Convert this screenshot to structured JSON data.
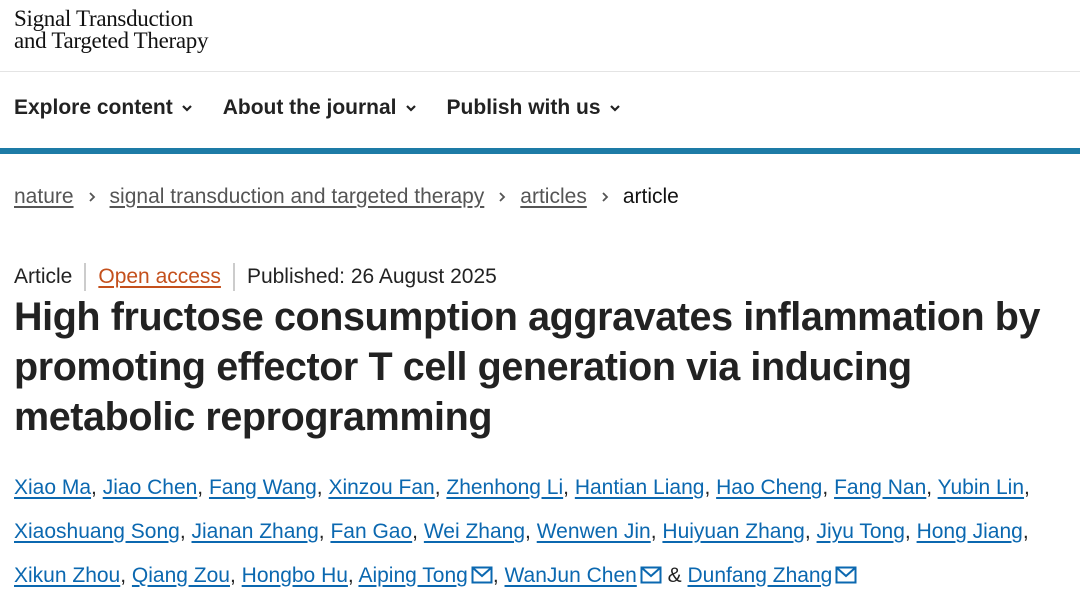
{
  "header": {
    "journal_name": [
      "Signal Transduction",
      "and Targeted Therapy"
    ]
  },
  "nav": [
    "Explore content",
    "About the journal",
    "Publish with us"
  ],
  "breadcrumbs": [
    "nature",
    "signal transduction and targeted therapy",
    "articles",
    "article"
  ],
  "article": {
    "type": "Article",
    "access": "Open access",
    "published": "Published: 26 August 2025",
    "title": "High fructose consumption aggravates inflammation by promoting effector T cell generation via inducing metabolic reprogramming",
    "author_separator": ",",
    "last_separator": "&",
    "authors": [
      {
        "name": "Xiao Ma"
      },
      {
        "name": "Jiao Chen"
      },
      {
        "name": "Fang Wang"
      },
      {
        "name": "Xinzou Fan"
      },
      {
        "name": "Zhenhong Li"
      },
      {
        "name": "Hantian Liang"
      },
      {
        "name": "Hao Cheng"
      },
      {
        "name": "Fang Nan"
      },
      {
        "name": "Yubin Lin"
      },
      {
        "name": "Xiaoshuang Song"
      },
      {
        "name": "Jianan Zhang"
      },
      {
        "name": "Fan Gao"
      },
      {
        "name": "Wei Zhang"
      },
      {
        "name": "Wenwen Jin"
      },
      {
        "name": "Huiyuan Zhang"
      },
      {
        "name": "Jiyu Tong"
      },
      {
        "name": "Hong Jiang"
      },
      {
        "name": "Xikun Zhou"
      },
      {
        "name": "Qiang Zou"
      },
      {
        "name": "Hongbo Hu"
      },
      {
        "name": "Aiping Tong",
        "corresponding": true
      },
      {
        "name": "WanJun Chen",
        "corresponding": true
      },
      {
        "name": "Dunfang Zhang",
        "corresponding": true
      }
    ]
  }
}
